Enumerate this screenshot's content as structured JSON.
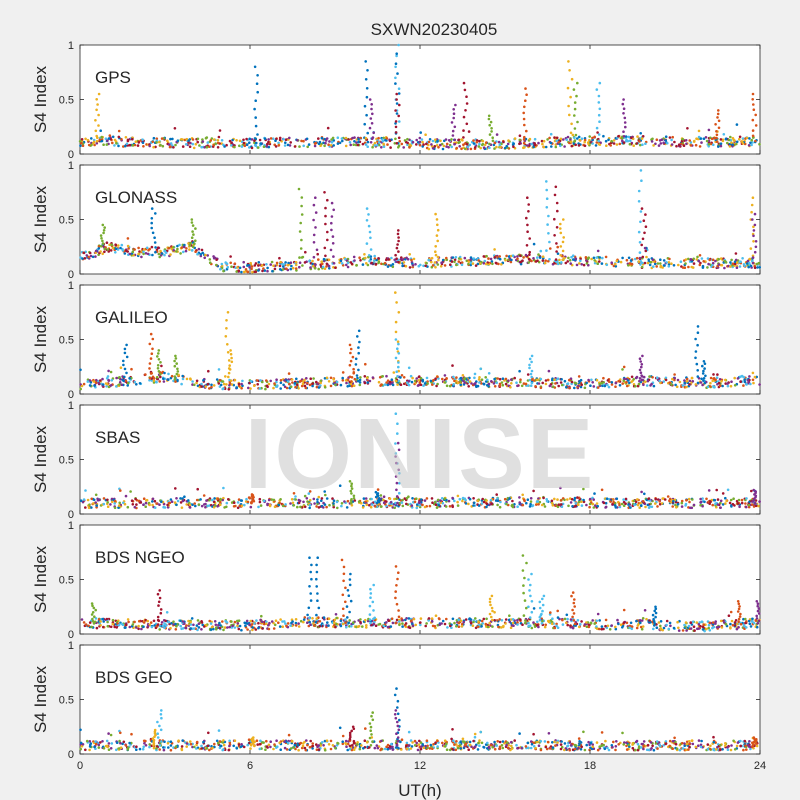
{
  "chart_data": {
    "type": "scatter",
    "title": "SXWN20230405",
    "xlabel": "UT(h)",
    "ylabel": "S4 Index",
    "xlim": [
      0,
      24
    ],
    "ylim": [
      0,
      1
    ],
    "xticks": [
      0,
      6,
      12,
      18,
      24
    ],
    "yticks": [
      0,
      0.5,
      1
    ],
    "ytick_labels": [
      "0",
      "0.5",
      "1"
    ],
    "grid": false,
    "watermark": "IONISE",
    "colors": [
      "#0072BD",
      "#D95319",
      "#EDB120",
      "#7E2F8E",
      "#77AC30",
      "#4DBEEE",
      "#A2142F"
    ],
    "panels": [
      {
        "label": "GPS",
        "baseline": [
          [
            0,
            0.12
          ],
          [
            2,
            0.11
          ],
          [
            4,
            0.1
          ],
          [
            6,
            0.1
          ],
          [
            8,
            0.11
          ],
          [
            10,
            0.11
          ],
          [
            12,
            0.09
          ],
          [
            14,
            0.09
          ],
          [
            16,
            0.1
          ],
          [
            18,
            0.12
          ],
          [
            20,
            0.12
          ],
          [
            22,
            0.11
          ],
          [
            24,
            0.12
          ]
        ],
        "spikes": [
          [
            0.6,
            0.55
          ],
          [
            6.2,
            0.8
          ],
          [
            10.1,
            0.85
          ],
          [
            10.3,
            0.5
          ],
          [
            11.2,
            1.0
          ],
          [
            11.2,
            0.92
          ],
          [
            11.2,
            0.55
          ],
          [
            13.2,
            0.45
          ],
          [
            13.6,
            0.65
          ],
          [
            14.5,
            0.35
          ],
          [
            15.7,
            0.6
          ],
          [
            17.3,
            0.85
          ],
          [
            17.5,
            0.65
          ],
          [
            18.3,
            0.65
          ],
          [
            19.2,
            0.5
          ],
          [
            22.5,
            0.4
          ],
          [
            23.8,
            0.55
          ]
        ]
      },
      {
        "label": "GLONASS",
        "baseline": [
          [
            0,
            0.15
          ],
          [
            1,
            0.25
          ],
          [
            2,
            0.2
          ],
          [
            3,
            0.2
          ],
          [
            4,
            0.25
          ],
          [
            5,
            0.07
          ],
          [
            6,
            0.06
          ],
          [
            8,
            0.08
          ],
          [
            10,
            0.12
          ],
          [
            12,
            0.1
          ],
          [
            14,
            0.12
          ],
          [
            16,
            0.14
          ],
          [
            18,
            0.12
          ],
          [
            20,
            0.1
          ],
          [
            22,
            0.1
          ],
          [
            24,
            0.1
          ]
        ],
        "spikes": [
          [
            0.8,
            0.45
          ],
          [
            2.6,
            0.6
          ],
          [
            4.0,
            0.5
          ],
          [
            7.8,
            0.78
          ],
          [
            8.3,
            0.7
          ],
          [
            8.7,
            0.75
          ],
          [
            8.9,
            0.65
          ],
          [
            10.2,
            0.6
          ],
          [
            11.2,
            0.4
          ],
          [
            12.6,
            0.55
          ],
          [
            15.8,
            0.7
          ],
          [
            16.5,
            0.85
          ],
          [
            16.8,
            0.8
          ],
          [
            17.0,
            0.5
          ],
          [
            19.8,
            0.95
          ],
          [
            19.9,
            0.6
          ],
          [
            23.7,
            0.7
          ],
          [
            23.8,
            0.55
          ]
        ]
      },
      {
        "label": "GALILEO",
        "baseline": [
          [
            0,
            0.08
          ],
          [
            2,
            0.13
          ],
          [
            3,
            0.16
          ],
          [
            4,
            0.1
          ],
          [
            6,
            0.08
          ],
          [
            8,
            0.1
          ],
          [
            10,
            0.12
          ],
          [
            12,
            0.12
          ],
          [
            14,
            0.11
          ],
          [
            16,
            0.1
          ],
          [
            18,
            0.1
          ],
          [
            20,
            0.12
          ],
          [
            22,
            0.1
          ],
          [
            24,
            0.13
          ]
        ],
        "spikes": [
          [
            1.6,
            0.45
          ],
          [
            2.5,
            0.55
          ],
          [
            2.8,
            0.4
          ],
          [
            3.4,
            0.35
          ],
          [
            5.2,
            0.75
          ],
          [
            5.3,
            0.4
          ],
          [
            9.6,
            0.45
          ],
          [
            9.8,
            0.58
          ],
          [
            11.2,
            0.93
          ],
          [
            11.2,
            0.5
          ],
          [
            15.9,
            0.35
          ],
          [
            19.8,
            0.35
          ],
          [
            21.8,
            0.62
          ],
          [
            22.0,
            0.3
          ]
        ]
      },
      {
        "label": "SBAS",
        "baseline": [
          [
            0,
            0.1
          ],
          [
            4,
            0.1
          ],
          [
            8,
            0.1
          ],
          [
            12,
            0.1
          ],
          [
            16,
            0.11
          ],
          [
            20,
            0.1
          ],
          [
            24,
            0.1
          ]
        ],
        "spikes": [
          [
            6.1,
            0.18
          ],
          [
            9.6,
            0.3
          ],
          [
            10.5,
            0.2
          ],
          [
            11.2,
            0.92
          ],
          [
            11.2,
            0.65
          ],
          [
            23.8,
            0.22
          ]
        ]
      },
      {
        "label": "BDS NGEO",
        "baseline": [
          [
            0,
            0.1
          ],
          [
            2,
            0.09
          ],
          [
            4,
            0.08
          ],
          [
            6,
            0.08
          ],
          [
            8,
            0.11
          ],
          [
            10,
            0.1
          ],
          [
            12,
            0.1
          ],
          [
            14,
            0.1
          ],
          [
            16,
            0.1
          ],
          [
            18,
            0.09
          ],
          [
            20,
            0.08
          ],
          [
            22,
            0.07
          ],
          [
            24,
            0.1
          ]
        ],
        "spikes": [
          [
            0.5,
            0.28
          ],
          [
            2.8,
            0.4
          ],
          [
            8.1,
            0.7
          ],
          [
            8.4,
            0.7
          ],
          [
            9.3,
            0.68
          ],
          [
            9.5,
            0.55
          ],
          [
            10.3,
            0.45
          ],
          [
            11.2,
            0.62
          ],
          [
            14.5,
            0.35
          ],
          [
            15.7,
            0.72
          ],
          [
            15.9,
            0.55
          ],
          [
            16.3,
            0.35
          ],
          [
            17.4,
            0.38
          ],
          [
            20.3,
            0.25
          ],
          [
            23.3,
            0.3
          ],
          [
            23.9,
            0.3
          ]
        ]
      },
      {
        "label": "BDS GEO",
        "baseline": [
          [
            0,
            0.08
          ],
          [
            6,
            0.08
          ],
          [
            12,
            0.08
          ],
          [
            18,
            0.08
          ],
          [
            24,
            0.08
          ]
        ],
        "spikes": [
          [
            2.6,
            0.22
          ],
          [
            2.8,
            0.4
          ],
          [
            6.1,
            0.15
          ],
          [
            9.6,
            0.25
          ],
          [
            10.3,
            0.38
          ],
          [
            11.2,
            0.6
          ],
          [
            11.2,
            0.4
          ],
          [
            23.8,
            0.15
          ]
        ]
      }
    ]
  }
}
